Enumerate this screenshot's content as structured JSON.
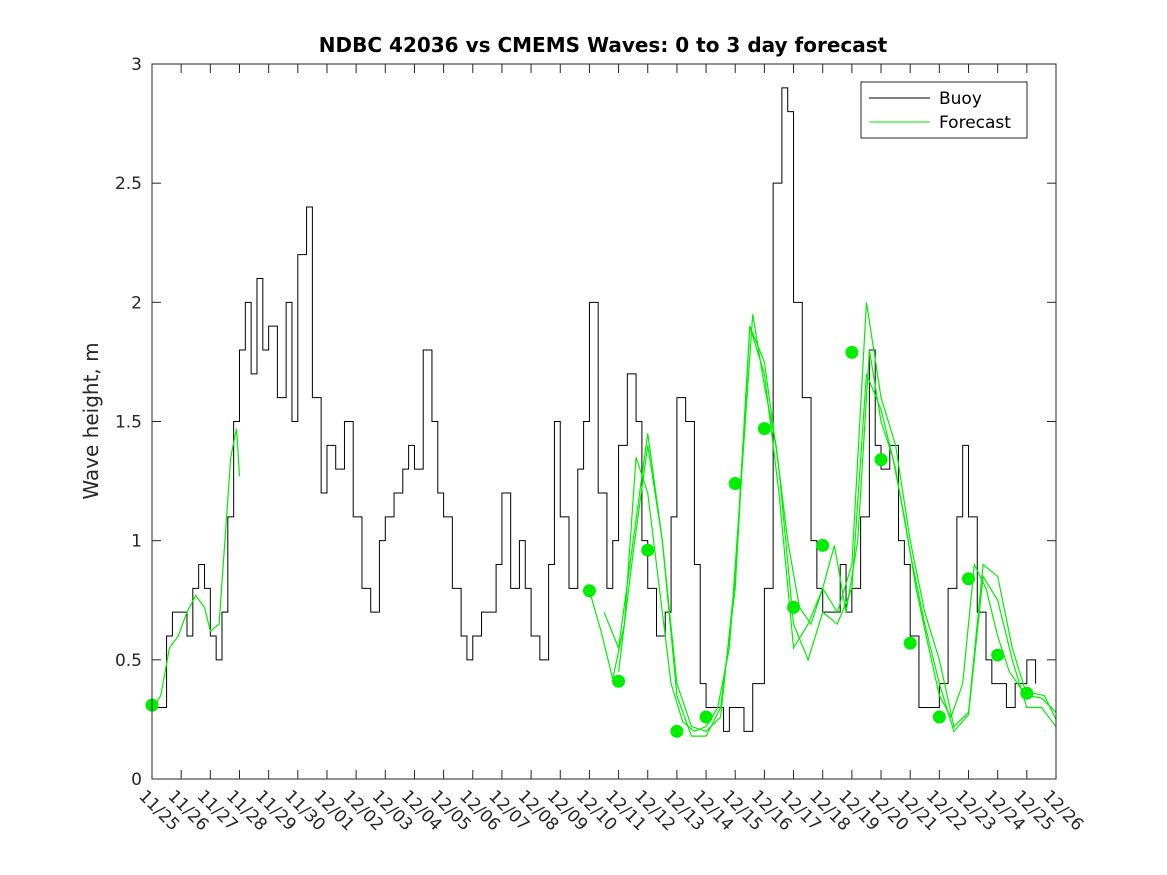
{
  "chart_data": {
    "type": "line",
    "title": "NDBC 42036 vs CMEMS Waves: 0 to 3 day forecast",
    "xlabel": "",
    "ylabel": "Wave height, m",
    "ylim": [
      0,
      3
    ],
    "yticks": [
      "0",
      "0.5",
      "1",
      "1.5",
      "2",
      "2.5",
      "3"
    ],
    "xticks": [
      "11/25",
      "11/26",
      "11/27",
      "11/28",
      "11/29",
      "11/30",
      "12/01",
      "12/02",
      "12/03",
      "12/04",
      "12/05",
      "12/06",
      "12/07",
      "12/08",
      "12/09",
      "12/10",
      "12/11",
      "12/12",
      "12/13",
      "12/14",
      "12/15",
      "12/16",
      "12/17",
      "12/18",
      "12/19",
      "12/20",
      "12/21",
      "12/22",
      "12/23",
      "12/24",
      "12/25",
      "12/26"
    ],
    "xlim_days": [
      0,
      31
    ],
    "legend": {
      "placement": "top-right",
      "entries": [
        "Buoy",
        "Forecast"
      ]
    },
    "colors": {
      "buoy": "#000000",
      "forecast": "#00ee00"
    },
    "grid": false,
    "series": [
      {
        "name": "Buoy",
        "x": [
          0,
          0.3,
          0.5,
          0.7,
          1.0,
          1.2,
          1.4,
          1.6,
          1.8,
          2.0,
          2.2,
          2.4,
          2.6,
          2.8,
          3.0,
          3.2,
          3.4,
          3.6,
          3.8,
          4.0,
          4.3,
          4.6,
          4.8,
          5.0,
          5.3,
          5.5,
          5.8,
          6.0,
          6.3,
          6.6,
          6.9,
          7.2,
          7.5,
          7.8,
          8.0,
          8.3,
          8.6,
          8.8,
          9.0,
          9.3,
          9.6,
          9.8,
          10.0,
          10.3,
          10.6,
          10.8,
          11.0,
          11.3,
          11.6,
          11.8,
          12.0,
          12.3,
          12.6,
          12.8,
          13.0,
          13.3,
          13.6,
          13.8,
          14.0,
          14.3,
          14.6,
          14.8,
          15.0,
          15.3,
          15.6,
          15.8,
          16.0,
          16.3,
          16.6,
          16.8,
          17.0,
          17.3,
          17.6,
          17.8,
          18.0,
          18.3,
          18.6,
          18.8,
          19.0,
          19.3,
          19.6,
          19.8,
          20.0,
          20.3,
          20.6,
          20.8,
          21.0,
          21.3,
          21.6,
          21.8,
          22.0,
          22.3,
          22.6,
          22.8,
          23.0,
          23.3,
          23.6,
          23.8,
          24.0,
          24.3,
          24.6,
          24.8,
          25.0,
          25.3,
          25.6,
          25.8,
          26.0,
          26.3,
          26.6,
          26.8,
          27.0,
          27.3,
          27.6,
          27.8,
          28.0,
          28.3,
          28.6,
          28.8,
          29.0,
          29.3,
          29.6,
          29.8,
          30.0,
          30.3
        ],
        "values": [
          0.3,
          0.3,
          0.6,
          0.7,
          0.7,
          0.6,
          0.8,
          0.9,
          0.8,
          0.6,
          0.5,
          0.7,
          1.1,
          1.5,
          1.8,
          2.0,
          1.7,
          2.1,
          1.8,
          1.9,
          1.6,
          2.0,
          1.5,
          2.2,
          2.4,
          1.6,
          1.2,
          1.4,
          1.3,
          1.5,
          1.1,
          0.8,
          0.7,
          1.0,
          1.1,
          1.2,
          1.3,
          1.4,
          1.3,
          1.8,
          1.5,
          1.2,
          1.1,
          0.8,
          0.6,
          0.5,
          0.6,
          0.7,
          0.7,
          0.9,
          1.2,
          0.8,
          1.0,
          0.8,
          0.6,
          0.5,
          0.9,
          1.5,
          1.1,
          0.8,
          1.3,
          1.5,
          2.0,
          1.2,
          0.8,
          1.0,
          1.4,
          1.7,
          1.5,
          1.0,
          0.8,
          0.6,
          0.7,
          1.1,
          1.6,
          1.5,
          0.9,
          0.4,
          0.3,
          0.3,
          0.2,
          0.3,
          0.3,
          0.2,
          0.4,
          0.4,
          0.8,
          2.5,
          2.9,
          2.8,
          2.0,
          1.6,
          1.0,
          0.8,
          0.7,
          0.7,
          0.9,
          0.7,
          0.8,
          1.1,
          1.8,
          1.4,
          1.3,
          1.4,
          1.0,
          0.9,
          0.6,
          0.3,
          0.3,
          0.3,
          0.4,
          0.8,
          1.1,
          1.4,
          1.1,
          0.7,
          0.5,
          0.4,
          0.4,
          0.3,
          0.4,
          0.4,
          0.5,
          0.4
        ]
      },
      {
        "name": "Forecast",
        "segments": [
          {
            "x": [
              0,
              0.3,
              0.6,
              0.9,
              1.2,
              1.5,
              1.8,
              2.0,
              2.3,
              2.5,
              2.7,
              2.9,
              3.0
            ],
            "y": [
              0.29,
              0.35,
              0.55,
              0.6,
              0.7,
              0.77,
              0.72,
              0.62,
              0.65,
              1.0,
              1.35,
              1.47,
              1.27
            ]
          },
          {
            "x": [
              15.0,
              15.4,
              15.8,
              16.2,
              16.6,
              17.0,
              17.4,
              17.8,
              18.2,
              18.6,
              19.0,
              19.4,
              19.8,
              20.2,
              20.6,
              21.0,
              21.4,
              21.8,
              22.2,
              22.6,
              23.0,
              23.4,
              23.8,
              24.2,
              24.6,
              25.0,
              25.4,
              25.8,
              26.2,
              26.6,
              27.0,
              27.4,
              27.8,
              28.2,
              28.6,
              29.0,
              29.4,
              29.8,
              30.2,
              30.6,
              31.0
            ],
            "y": [
              0.79,
              0.62,
              0.42,
              0.65,
              1.35,
              1.2,
              0.8,
              0.4,
              0.24,
              0.2,
              0.22,
              0.3,
              0.55,
              1.24,
              1.95,
              1.65,
              1.4,
              1.0,
              0.72,
              0.65,
              0.8,
              0.98,
              0.7,
              1.0,
              1.8,
              1.5,
              1.35,
              1.1,
              0.8,
              0.57,
              0.35,
              0.26,
              0.4,
              0.9,
              0.8,
              0.6,
              0.45,
              0.38,
              0.36,
              0.35,
              0.25
            ]
          },
          {
            "x": [
              15.5,
              16.0,
              16.5,
              17.0,
              17.5,
              18.0,
              18.5,
              19.0,
              19.5,
              20.0,
              20.5,
              21.0,
              21.5,
              22.0,
              22.5,
              23.0,
              23.5,
              24.0,
              24.5,
              25.0,
              25.5,
              26.0,
              26.5,
              27.0,
              27.5,
              28.0,
              28.5,
              29.0,
              29.5,
              30.0,
              30.5,
              31.0
            ],
            "y": [
              0.7,
              0.55,
              1.0,
              1.45,
              1.0,
              0.4,
              0.22,
              0.2,
              0.26,
              0.85,
              1.9,
              1.7,
              1.2,
              0.55,
              0.65,
              0.8,
              0.7,
              0.9,
              2.0,
              1.6,
              1.4,
              1.0,
              0.7,
              0.5,
              0.22,
              0.28,
              0.9,
              0.85,
              0.55,
              0.35,
              0.34,
              0.28
            ]
          },
          {
            "x": [
              16.0,
              16.5,
              17.0,
              17.5,
              18.0,
              18.5,
              19.0,
              19.5,
              20.0,
              20.5,
              21.0,
              21.5,
              22.0,
              22.5,
              23.0,
              23.5,
              24.0,
              24.5,
              25.0,
              25.5,
              26.0,
              26.5,
              27.0,
              27.5,
              28.0,
              28.5,
              29.0,
              29.5,
              30.0,
              30.5,
              31.0
            ],
            "y": [
              0.45,
              0.95,
              1.4,
              1.0,
              0.35,
              0.18,
              0.18,
              0.3,
              0.8,
              1.9,
              1.75,
              1.3,
              0.65,
              0.5,
              0.7,
              0.65,
              0.8,
              1.7,
              1.55,
              1.3,
              0.95,
              0.65,
              0.4,
              0.2,
              0.27,
              0.85,
              0.75,
              0.5,
              0.3,
              0.3,
              0.22
            ]
          }
        ],
        "markers": {
          "x": [
            0,
            15,
            16,
            17,
            18,
            19,
            20,
            21,
            22,
            23,
            24,
            25,
            26,
            27,
            28,
            29,
            30
          ],
          "y": [
            0.31,
            0.79,
            0.41,
            0.96,
            0.2,
            0.26,
            1.24,
            1.47,
            0.72,
            0.98,
            1.79,
            1.34,
            0.57,
            0.26,
            0.84,
            0.52,
            0.36
          ]
        }
      }
    ]
  }
}
